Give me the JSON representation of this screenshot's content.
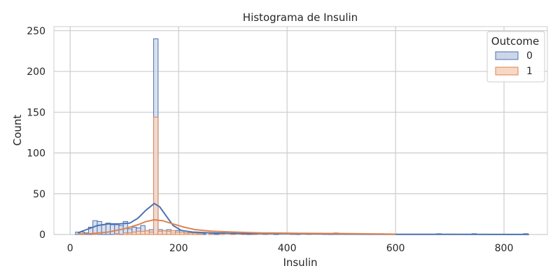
{
  "chart_data": {
    "type": "histogram",
    "title": "Histograma de Insulin",
    "xlabel": "Insulin",
    "ylabel": "Count",
    "xlim": [
      -30,
      880
    ],
    "ylim": [
      0,
      255
    ],
    "x_ticks": [
      0,
      200,
      400,
      600,
      800
    ],
    "y_ticks": [
      0,
      50,
      100,
      150,
      200,
      250
    ],
    "grid": true,
    "legend": {
      "title": "Outcome",
      "placement": "top-right"
    },
    "bin_width": 8.3,
    "series": [
      {
        "name": "0",
        "color": "#4c72b0",
        "fill": "#cdd6e9",
        "bins": [
          [
            14,
            3
          ],
          [
            22,
            3
          ],
          [
            30,
            2
          ],
          [
            38,
            9
          ],
          [
            46,
            17
          ],
          [
            54,
            16
          ],
          [
            62,
            12
          ],
          [
            70,
            14
          ],
          [
            78,
            12
          ],
          [
            86,
            12
          ],
          [
            94,
            11
          ],
          [
            102,
            16
          ],
          [
            110,
            7
          ],
          [
            118,
            9
          ],
          [
            126,
            8
          ],
          [
            134,
            11
          ],
          [
            142,
            4
          ],
          [
            150,
            6
          ],
          [
            158,
            240
          ],
          [
            166,
            6
          ],
          [
            174,
            4
          ],
          [
            182,
            6
          ],
          [
            190,
            3
          ],
          [
            198,
            5
          ],
          [
            206,
            3
          ],
          [
            214,
            2
          ],
          [
            222,
            2
          ],
          [
            230,
            1
          ],
          [
            238,
            1
          ],
          [
            246,
            1
          ],
          [
            270,
            1
          ],
          [
            300,
            1
          ],
          [
            330,
            1
          ],
          [
            380,
            1
          ],
          [
            420,
            1
          ],
          [
            480,
            1
          ],
          [
            540,
            1
          ],
          [
            680,
            1
          ],
          [
            745,
            1
          ],
          [
            840,
            1
          ]
        ],
        "kde": [
          [
            14,
            2
          ],
          [
            30,
            6
          ],
          [
            50,
            11
          ],
          [
            70,
            13
          ],
          [
            90,
            13
          ],
          [
            110,
            14
          ],
          [
            125,
            20
          ],
          [
            140,
            30
          ],
          [
            155,
            38
          ],
          [
            165,
            34
          ],
          [
            178,
            22
          ],
          [
            190,
            11
          ],
          [
            205,
            5
          ],
          [
            225,
            3
          ],
          [
            260,
            2
          ],
          [
            320,
            1
          ],
          [
            400,
            1
          ],
          [
            500,
            0.5
          ],
          [
            600,
            0.3
          ],
          [
            700,
            0.2
          ],
          [
            800,
            0.1
          ],
          [
            846,
            0.1
          ]
        ]
      },
      {
        "name": "1",
        "color": "#dd8452",
        "fill": "#f6d8c5",
        "bins": [
          [
            46,
            1
          ],
          [
            86,
            1
          ],
          [
            102,
            2
          ],
          [
            110,
            2
          ],
          [
            118,
            3
          ],
          [
            126,
            4
          ],
          [
            134,
            4
          ],
          [
            142,
            5
          ],
          [
            150,
            3
          ],
          [
            158,
            144
          ],
          [
            166,
            4
          ],
          [
            174,
            5
          ],
          [
            182,
            4
          ],
          [
            190,
            5
          ],
          [
            198,
            3
          ],
          [
            206,
            3
          ],
          [
            214,
            2
          ],
          [
            222,
            2
          ],
          [
            230,
            2
          ],
          [
            240,
            1
          ],
          [
            260,
            1
          ],
          [
            280,
            2
          ],
          [
            300,
            1
          ],
          [
            320,
            2
          ],
          [
            340,
            1
          ],
          [
            360,
            1
          ],
          [
            410,
            1
          ],
          [
            440,
            1
          ],
          [
            470,
            1
          ],
          [
            490,
            2
          ],
          [
            510,
            1
          ],
          [
            545,
            1
          ],
          [
            575,
            1
          ]
        ],
        "kde": [
          [
            14,
            0.5
          ],
          [
            40,
            1
          ],
          [
            70,
            3
          ],
          [
            100,
            7
          ],
          [
            125,
            12
          ],
          [
            140,
            16
          ],
          [
            155,
            18
          ],
          [
            170,
            17
          ],
          [
            190,
            13
          ],
          [
            210,
            9
          ],
          [
            230,
            6
          ],
          [
            260,
            4
          ],
          [
            300,
            3
          ],
          [
            350,
            2
          ],
          [
            420,
            1.5
          ],
          [
            500,
            1.2
          ],
          [
            560,
            0.8
          ],
          [
            600,
            0.4
          ]
        ]
      }
    ]
  }
}
